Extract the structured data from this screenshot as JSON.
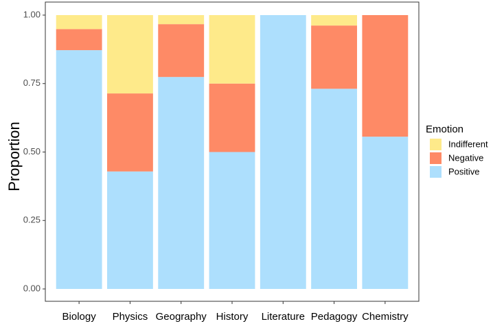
{
  "chart_data": {
    "type": "bar",
    "stacked": true,
    "normalized": true,
    "title": "",
    "xlabel": "",
    "ylabel": "Proportion",
    "ylim": [
      0,
      1
    ],
    "yticks": [
      {
        "value": 0.0,
        "label": "0.00"
      },
      {
        "value": 0.25,
        "label": "0.25"
      },
      {
        "value": 0.5,
        "label": "0.50"
      },
      {
        "value": 0.75,
        "label": "0.75"
      },
      {
        "value": 1.0,
        "label": "1.00"
      }
    ],
    "grid": false,
    "categories": [
      "Biology",
      "Physics",
      "Geography",
      "History",
      "Literature",
      "Pedagogy",
      "Chemistry"
    ],
    "series": [
      {
        "name": "Positive",
        "color": "#ADDFFD",
        "values": [
          0.872,
          0.429,
          0.774,
          0.5,
          1.0,
          0.731,
          0.556
        ]
      },
      {
        "name": "Negative",
        "color": "#FE8A66",
        "values": [
          0.077,
          0.285,
          0.193,
          0.25,
          0.0,
          0.231,
          0.444
        ]
      },
      {
        "name": "Indifferent",
        "color": "#FEEA8A",
        "values": [
          0.051,
          0.286,
          0.033,
          0.25,
          0.0,
          0.038,
          0.0
        ]
      }
    ],
    "legend": {
      "title": "Emotion",
      "position": "right",
      "items": [
        "Indifferent",
        "Negative",
        "Positive"
      ]
    }
  }
}
